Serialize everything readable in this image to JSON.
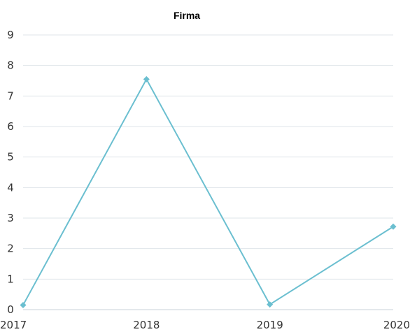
{
  "chart_data": {
    "type": "line",
    "title": "Firma",
    "xlabel": "",
    "ylabel": "",
    "categories": [
      "2017",
      "2018",
      "2019",
      "2020"
    ],
    "series": [
      {
        "values": [
          0.15,
          7.55,
          0.17,
          2.72
        ],
        "color": "#6bbfd0",
        "marker": "diamond"
      }
    ],
    "ylim": [
      0,
      9
    ],
    "yticks": [
      0,
      1,
      2,
      3,
      4,
      5,
      6,
      7,
      8,
      9
    ],
    "grid": true,
    "legend": "none"
  }
}
